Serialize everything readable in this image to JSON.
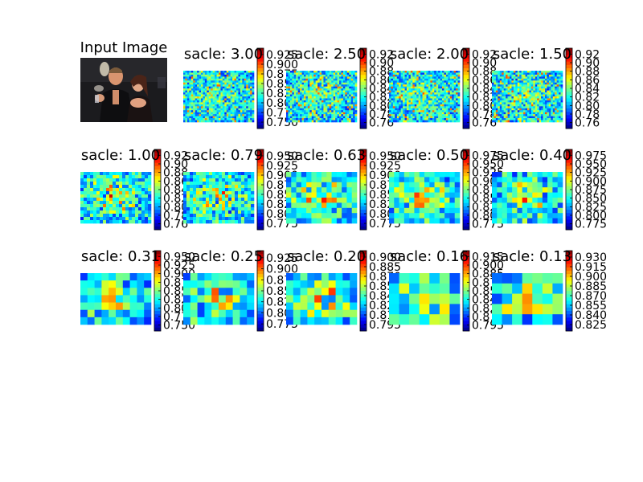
{
  "figure": {
    "input_title": "Input Image",
    "colormap": "jet"
  },
  "chart_data": [
    {
      "type": "heatmap",
      "title": "sacle: 3.00",
      "colorbar_ticks": [
        "0.925",
        "0.900",
        "0.875",
        "0.850",
        "0.825",
        "0.800",
        "0.775",
        "0.750"
      ],
      "colorbar_range": [
        0.74,
        0.94
      ],
      "texture": "fine"
    },
    {
      "type": "heatmap",
      "title": "sacle: 2.50",
      "colorbar_ticks": [
        "0.92",
        "0.90",
        "0.88",
        "0.86",
        "0.84",
        "0.82",
        "0.80",
        "0.78",
        "0.76"
      ],
      "colorbar_range": [
        0.75,
        0.93
      ],
      "texture": "fine"
    },
    {
      "type": "heatmap",
      "title": "sacle: 2.00",
      "colorbar_ticks": [
        "0.92",
        "0.90",
        "0.88",
        "0.86",
        "0.84",
        "0.82",
        "0.80",
        "0.78",
        "0.76"
      ],
      "colorbar_range": [
        0.75,
        0.93
      ],
      "texture": "fine"
    },
    {
      "type": "heatmap",
      "title": "sacle: 1.50",
      "colorbar_ticks": [
        "0.92",
        "0.90",
        "0.88",
        "0.86",
        "0.84",
        "0.82",
        "0.80",
        "0.78",
        "0.76"
      ],
      "colorbar_range": [
        0.75,
        0.93
      ],
      "texture": "fine"
    },
    {
      "type": "heatmap",
      "title": "sacle: 1.00",
      "colorbar_ticks": [
        "0.92",
        "0.90",
        "0.88",
        "0.86",
        "0.84",
        "0.82",
        "0.80",
        "0.78",
        "0.76"
      ],
      "colorbar_range": [
        0.75,
        0.93
      ],
      "texture": "medium"
    },
    {
      "type": "heatmap",
      "title": "sacle: 0.79",
      "colorbar_ticks": [
        "0.950",
        "0.925",
        "0.900",
        "0.875",
        "0.850",
        "0.825",
        "0.800",
        "0.775"
      ],
      "colorbar_range": [
        0.77,
        0.96
      ],
      "texture": "medium"
    },
    {
      "type": "heatmap",
      "title": "sacle: 0.63",
      "colorbar_ticks": [
        "0.950",
        "0.925",
        "0.900",
        "0.875",
        "0.850",
        "0.825",
        "0.800",
        "0.775"
      ],
      "colorbar_range": [
        0.77,
        0.96
      ],
      "texture": "coarse"
    },
    {
      "type": "heatmap",
      "title": "sacle: 0.50",
      "colorbar_ticks": [
        "0.975",
        "0.950",
        "0.925",
        "0.900",
        "0.875",
        "0.850",
        "0.825",
        "0.800",
        "0.775"
      ],
      "colorbar_range": [
        0.77,
        0.98
      ],
      "texture": "coarse"
    },
    {
      "type": "heatmap",
      "title": "sacle: 0.40",
      "colorbar_ticks": [
        "0.975",
        "0.950",
        "0.925",
        "0.900",
        "0.875",
        "0.850",
        "0.825",
        "0.800",
        "0.775"
      ],
      "colorbar_range": [
        0.77,
        0.98
      ],
      "texture": "coarse"
    },
    {
      "type": "heatmap",
      "title": "sacle: 0.31",
      "colorbar_ticks": [
        "0.950",
        "0.925",
        "0.900",
        "0.875",
        "0.850",
        "0.825",
        "0.800",
        "0.775",
        "0.750"
      ],
      "colorbar_range": [
        0.74,
        0.96
      ],
      "texture": "blobby"
    },
    {
      "type": "heatmap",
      "title": "sacle: 0.25",
      "colorbar_ticks": [
        "0.925",
        "0.900",
        "0.875",
        "0.850",
        "0.825",
        "0.800",
        "0.775"
      ],
      "colorbar_range": [
        0.77,
        0.94
      ],
      "texture": "blobby"
    },
    {
      "type": "heatmap",
      "title": "sacle: 0.20",
      "colorbar_ticks": [
        "0.900",
        "0.885",
        "0.870",
        "0.855",
        "0.840",
        "0.825",
        "0.810",
        "0.795"
      ],
      "colorbar_range": [
        0.79,
        0.91
      ],
      "texture": "blobby"
    },
    {
      "type": "heatmap",
      "title": "sacle: 0.16",
      "colorbar_ticks": [
        "0.915",
        "0.900",
        "0.885",
        "0.870",
        "0.855",
        "0.840",
        "0.825",
        "0.810",
        "0.795"
      ],
      "colorbar_range": [
        0.79,
        0.92
      ],
      "texture": "smooth"
    },
    {
      "type": "heatmap",
      "title": "sacle: 0.13",
      "colorbar_ticks": [
        "0.930",
        "0.915",
        "0.900",
        "0.885",
        "0.870",
        "0.855",
        "0.840",
        "0.825"
      ],
      "colorbar_range": [
        0.82,
        0.94
      ],
      "texture": "smooth"
    }
  ]
}
